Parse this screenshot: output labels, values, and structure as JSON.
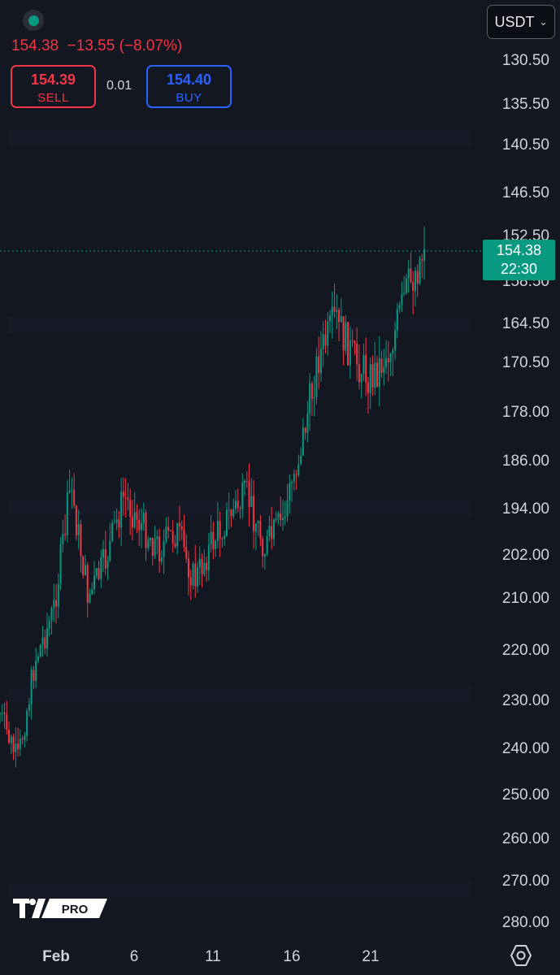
{
  "header": {
    "price_change": "154.38  −13.55 (−8.07%)",
    "sell_price": "154.39",
    "sell_label": "SELL",
    "spread": "0.01",
    "buy_price": "154.40",
    "buy_label": "BUY",
    "currency": "USDT"
  },
  "last_price": {
    "price": "154.38",
    "countdown": "22:30"
  },
  "logo_text": "PRO",
  "colors": {
    "background": "#131722",
    "up": "#089981",
    "down": "#f23645",
    "buy": "#2962ff",
    "axis_text": "#d1d4dc"
  },
  "chart_data": {
    "type": "candlestick",
    "y_scale": "inverted (higher values toward bottom)",
    "y_tick_labels": [
      "130.50",
      "135.50",
      "140.50",
      "146.50",
      "152.50",
      "158.50",
      "164.50",
      "170.50",
      "178.00",
      "186.00",
      "194.00",
      "202.00",
      "210.00",
      "220.00",
      "230.00",
      "240.00",
      "250.00",
      "260.00",
      "270.00",
      "280.00"
    ],
    "x_tick_labels": [
      "Feb",
      "6",
      "11",
      "16",
      "21"
    ],
    "last_price": 154.38,
    "price_path": [
      [
        "Jan 31",
        233
      ],
      [
        "Feb 1",
        243
      ],
      [
        "Feb 2",
        222
      ],
      [
        "Feb 3",
        213
      ],
      [
        "Feb 4",
        190
      ],
      [
        "Feb 5",
        210
      ],
      [
        "Feb 6",
        203
      ],
      [
        "Feb 7",
        192
      ],
      [
        "Feb 8",
        197
      ],
      [
        "Feb 9",
        201
      ],
      [
        "Feb 10",
        198
      ],
      [
        "Feb 11",
        207
      ],
      [
        "Feb 12",
        200
      ],
      [
        "Feb 13",
        195
      ],
      [
        "Feb 14",
        192
      ],
      [
        "Feb 15",
        201
      ],
      [
        "Feb 16",
        196
      ],
      [
        "Feb 17",
        184
      ],
      [
        "Feb 18",
        170
      ],
      [
        "Feb 19",
        164
      ],
      [
        "Feb 20",
        170
      ],
      [
        "Feb 21",
        173
      ],
      [
        "Feb 22",
        169
      ],
      [
        "Feb 23",
        160
      ],
      [
        "Feb 24",
        154.38
      ]
    ]
  }
}
